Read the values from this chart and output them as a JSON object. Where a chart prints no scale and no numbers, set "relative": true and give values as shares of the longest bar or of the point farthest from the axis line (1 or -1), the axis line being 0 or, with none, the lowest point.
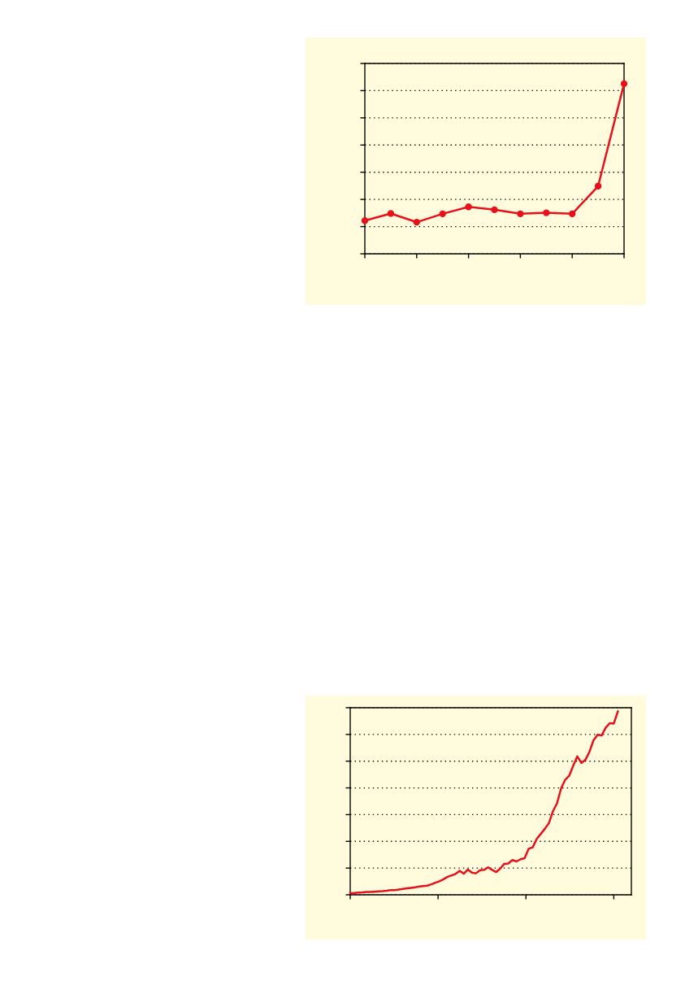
{
  "chart_data": [
    {
      "type": "line",
      "relative": true,
      "categories": [
        null,
        null,
        null,
        null,
        null,
        null,
        null,
        null,
        null,
        null,
        null
      ],
      "series": [
        {
          "color": "#e8101a",
          "values": [
            0.195,
            0.237,
            0.186,
            0.235,
            0.276,
            0.259,
            0.235,
            0.241,
            0.235,
            0.398,
            1.0
          ]
        }
      ],
      "marker": "circle",
      "line_style": "solid",
      "grid": "y"
    },
    {
      "type": "line",
      "relative": true,
      "categories": [
        null,
        null,
        null,
        null,
        null,
        null,
        null,
        null,
        null,
        null,
        null,
        null,
        null,
        null,
        null,
        null,
        null,
        null,
        null,
        null,
        null,
        null,
        null,
        null,
        null,
        null,
        null,
        null,
        null,
        null,
        null,
        null,
        null,
        null,
        null,
        null,
        null,
        null,
        null,
        null,
        null,
        null,
        null,
        null,
        null,
        null,
        null,
        null,
        null,
        null,
        null,
        null,
        null,
        null,
        null,
        null,
        null,
        null,
        null,
        null,
        null,
        null,
        null,
        null,
        null,
        null,
        null
      ],
      "series": [
        {
          "color": "#e8101a",
          "values": [
            0.009,
            0.01,
            0.012,
            0.013,
            0.015,
            0.015,
            0.017,
            0.019,
            0.02,
            0.022,
            0.026,
            0.025,
            0.029,
            0.032,
            0.035,
            0.038,
            0.041,
            0.045,
            0.048,
            0.05,
            0.057,
            0.066,
            0.074,
            0.085,
            0.098,
            0.106,
            0.114,
            0.131,
            0.115,
            0.138,
            0.121,
            0.117,
            0.134,
            0.136,
            0.15,
            0.136,
            0.124,
            0.143,
            0.169,
            0.171,
            0.19,
            0.182,
            0.194,
            0.2,
            0.251,
            0.259,
            0.305,
            0.332,
            0.36,
            0.391,
            0.456,
            0.499,
            0.58,
            0.627,
            0.649,
            0.704,
            0.755,
            0.719,
            0.736,
            0.78,
            0.843,
            0.873,
            0.869,
            0.911,
            0.936,
            0.934,
            1.0
          ]
        }
      ],
      "marker": "none",
      "line_style": "solid",
      "grid": "y"
    }
  ]
}
